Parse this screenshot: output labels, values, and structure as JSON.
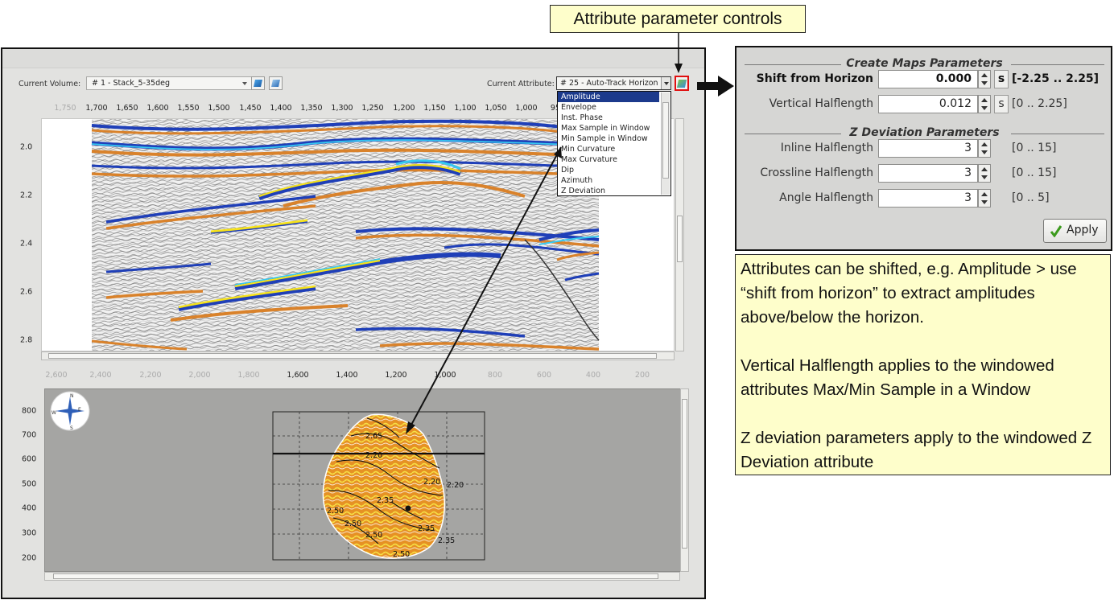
{
  "annotations": {
    "title": "Attribute parameter controls",
    "notes": [
      "Attributes can be shifted, e.g. Amplitude > use “shift from horizon” to extract amplitudes above/below the horizon.",
      "Vertical Halflength applies to the windowed attributes Max/Min Sample in a Window",
      "Z deviation parameters apply to the windowed Z Deviation attribute"
    ]
  },
  "toolbar": {
    "volume_label": "Current Volume:",
    "volume_value": "# 1 - Stack_5-35deg",
    "attribute_label": "Current Attribute:",
    "attribute_value": "# 25 - Auto-Track Horizon"
  },
  "attribute_list": [
    "Amplitude",
    "Envelope",
    "Inst. Phase",
    "Max Sample in Window",
    "Min Sample in Window",
    "Min Curvature",
    "Max Curvature",
    "Dip",
    "Azimuth",
    "Z Deviation"
  ],
  "attribute_selected": "Amplitude",
  "section": {
    "x_ticks": [
      "1,750",
      "1,700",
      "1,650",
      "1,600",
      "1,550",
      "1,500",
      "1,450",
      "1,400",
      "1,350",
      "1,300",
      "1,250",
      "1,200",
      "1,150",
      "1,100",
      "1,050",
      "1,000",
      "950"
    ],
    "y_ticks": [
      "2.0",
      "2.2",
      "2.4",
      "2.6",
      "2.8"
    ]
  },
  "map": {
    "x_ticks": [
      "2,600",
      "2,400",
      "2,200",
      "2,000",
      "1,800",
      "1,600",
      "1,400",
      "1,200",
      "1,000",
      "800",
      "600",
      "400",
      "200"
    ],
    "y_ticks": [
      "800",
      "700",
      "600",
      "500",
      "400",
      "300",
      "200"
    ],
    "compass": [
      "N",
      "E",
      "S",
      "W"
    ],
    "contour_labels": [
      "2.65",
      "2.20",
      "2.20",
      "2.20",
      "2.35",
      "2.50",
      "2.50",
      "2.50",
      "2.35",
      "2.35",
      "2.50"
    ]
  },
  "params": {
    "create_maps_title": "Create Maps Parameters",
    "shift": {
      "label": "Shift from Horizon",
      "value": "0.000",
      "unit": "s",
      "range": "[-2.25 .. 2.25]"
    },
    "vertical": {
      "label": "Vertical Halflength",
      "value": "0.012",
      "unit": "s",
      "range": "[0 .. 2.25]"
    },
    "zdev_title": "Z Deviation Parameters",
    "inline": {
      "label": "Inline Halflength",
      "value": "3",
      "range": "[0 .. 15]"
    },
    "crossline": {
      "label": "Crossline Halflength",
      "value": "3",
      "range": "[0 .. 15]"
    },
    "angle": {
      "label": "Angle Halflength",
      "value": "3",
      "range": "[0 .. 5]"
    },
    "apply_label": "Apply"
  },
  "colors": {
    "callout_fill": "#fefecb",
    "highlight_box": "#e01010",
    "seismic_orange": "#d9822b",
    "seismic_blue": "#1f3fb8",
    "seismic_cyan": "#36c8f0",
    "seismic_yellow": "#f6e21a"
  }
}
